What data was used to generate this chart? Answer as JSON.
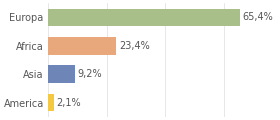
{
  "categories": [
    "Europa",
    "Africa",
    "Asia",
    "America"
  ],
  "values": [
    65.4,
    23.4,
    9.2,
    2.1
  ],
  "labels": [
    "65,4%",
    "23,4%",
    "9,2%",
    "2,1%"
  ],
  "bar_colors": [
    "#a8bf8a",
    "#e8a87c",
    "#6e85b7",
    "#f5c842"
  ],
  "background_color": "#ffffff",
  "xlim": [
    0,
    78
  ],
  "bar_height": 0.62,
  "label_fontsize": 7.0,
  "tick_fontsize": 7.0,
  "grid_color": "#dddddd",
  "text_color": "#555555",
  "figsize": [
    2.8,
    1.2
  ],
  "dpi": 100
}
